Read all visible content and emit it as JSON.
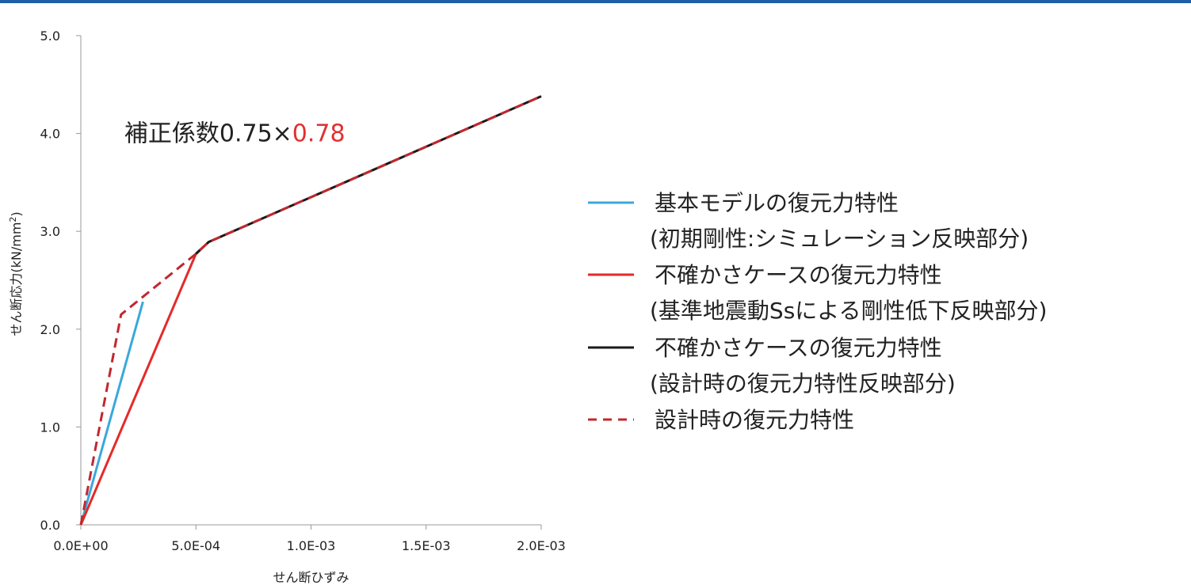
{
  "colors": {
    "header_rule": "#1f5fa8",
    "axis": "#999999"
  },
  "chart_data": {
    "type": "line",
    "xlabel": "せん断ひずみ",
    "ylabel": "せん断応力(kN/mm",
    "ylabel_sup": "2",
    "ylabel_tail": ")",
    "xlim": [
      0,
      0.002
    ],
    "ylim": [
      0,
      5
    ],
    "x_ticks": [
      {
        "value": 0,
        "label": "0.0E+00"
      },
      {
        "value": 0.0005,
        "label": "5.0E-04"
      },
      {
        "value": 0.001,
        "label": "1.0E-03"
      },
      {
        "value": 0.0015,
        "label": "1.5E-03"
      },
      {
        "value": 0.002,
        "label": "2.0E-03"
      }
    ],
    "y_ticks": [
      {
        "value": 0,
        "label": "0.0"
      },
      {
        "value": 1,
        "label": "1.0"
      },
      {
        "value": 2,
        "label": "2.0"
      },
      {
        "value": 3,
        "label": "3.0"
      },
      {
        "value": 4,
        "label": "4.0"
      },
      {
        "value": 5,
        "label": "5.0"
      }
    ],
    "grid": false,
    "annotation": {
      "prefix": "補正係数0.75×",
      "highlight": "0.78",
      "prefix_color": "#222222",
      "highlight_color": "#e03030",
      "at": {
        "x": 0.00012,
        "y": 4.0
      }
    },
    "legend_position": "right",
    "series": [
      {
        "name": "基本モデルの復元力特性",
        "note": "(初期剛性:シミュレーション反映部分)",
        "color": "#3aa8dc",
        "dash": "solid",
        "x": [
          0,
          0.00027
        ],
        "y": [
          0,
          2.28
        ]
      },
      {
        "name": "不確かさケースの復元力特性",
        "note": "(基準地震動Ssによる剛性低下反映部分)",
        "color": "#e42a2a",
        "dash": "solid",
        "x": [
          0,
          0.0005,
          0.000555
        ],
        "y": [
          0,
          2.77,
          2.89
        ]
      },
      {
        "name": "不確かさケースの復元力特性",
        "note": "(設計時の復元力特性反映部分)",
        "color": "#1a1a1a",
        "dash": "solid",
        "x": [
          0.0005,
          0.000555,
          0.002
        ],
        "y": [
          2.77,
          2.89,
          4.38
        ]
      },
      {
        "name": "設計時の復元力特性",
        "note": "",
        "color": "#c0282e",
        "dash": "dashed",
        "x": [
          0,
          0.000175,
          0.0005,
          0.000555,
          0.002
        ],
        "y": [
          0,
          2.15,
          2.77,
          2.89,
          4.38
        ]
      }
    ]
  }
}
